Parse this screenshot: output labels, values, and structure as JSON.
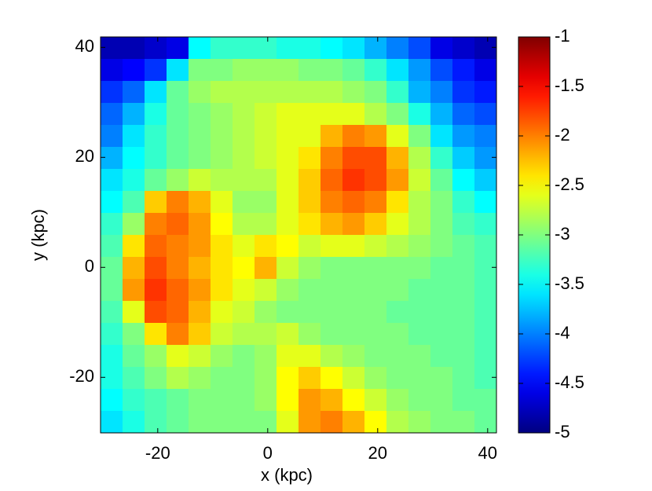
{
  "chart_data": {
    "type": "heatmap",
    "xlabel": "x (kpc)",
    "ylabel": "y (kpc)",
    "colormap": "jet",
    "xlim": [
      -30.4,
      41.6
    ],
    "ylim": [
      -30.1,
      41.9
    ],
    "xticks": [
      -20,
      0,
      20,
      40
    ],
    "yticks": [
      -20,
      0,
      20,
      40
    ],
    "x": [
      -28.4,
      -24.4,
      -20.4,
      -16.4,
      -12.4,
      -8.4,
      -4.4,
      -0.4,
      3.6,
      7.6,
      11.6,
      15.6,
      19.6,
      23.6,
      27.6,
      31.6,
      35.6,
      39.6
    ],
    "y": [
      39.9,
      35.9,
      31.9,
      27.9,
      23.9,
      19.9,
      15.9,
      11.9,
      7.9,
      3.9,
      -0.1,
      -4.1,
      -8.1,
      -12.1,
      -16.1,
      -20.1,
      -24.1,
      -28.1
    ],
    "values": [
      [
        -4.8,
        -4.8,
        -4.7,
        -4.6,
        -3.5,
        -3.3,
        -3.3,
        -3.3,
        -3.4,
        -3.4,
        -3.5,
        -3.6,
        -3.8,
        -4.0,
        -4.2,
        -4.6,
        -4.7,
        -4.8
      ],
      [
        -4.6,
        -4.5,
        -4.3,
        -3.6,
        -3.0,
        -3.0,
        -2.9,
        -2.9,
        -2.9,
        -3.0,
        -3.0,
        -3.1,
        -3.3,
        -3.6,
        -3.9,
        -4.2,
        -4.4,
        -4.6
      ],
      [
        -4.3,
        -4.1,
        -3.6,
        -3.1,
        -2.9,
        -2.8,
        -2.8,
        -2.8,
        -2.8,
        -2.8,
        -2.8,
        -2.9,
        -3.0,
        -3.3,
        -3.8,
        -4.0,
        -4.3,
        -4.4
      ],
      [
        -4.1,
        -3.8,
        -3.4,
        -3.1,
        -3.0,
        -2.9,
        -2.8,
        -2.7,
        -2.6,
        -2.6,
        -2.6,
        -2.6,
        -2.8,
        -3.0,
        -3.4,
        -3.8,
        -4.1,
        -4.2
      ],
      [
        -4.0,
        -3.6,
        -3.3,
        -3.1,
        -3.0,
        -2.9,
        -2.8,
        -2.7,
        -2.6,
        -2.6,
        -2.2,
        -2.0,
        -2.1,
        -2.6,
        -3.0,
        -3.6,
        -3.9,
        -4.0
      ],
      [
        -3.8,
        -3.5,
        -3.3,
        -3.1,
        -3.0,
        -2.9,
        -2.8,
        -2.7,
        -2.6,
        -2.4,
        -2.0,
        -1.8,
        -1.8,
        -2.2,
        -2.8,
        -3.3,
        -3.7,
        -3.9
      ],
      [
        -3.6,
        -3.4,
        -3.1,
        -2.9,
        -2.7,
        -2.8,
        -2.8,
        -2.8,
        -2.6,
        -2.3,
        -1.9,
        -1.7,
        -1.8,
        -2.1,
        -2.7,
        -3.1,
        -3.5,
        -3.7
      ],
      [
        -3.5,
        -3.2,
        -2.3,
        -2.0,
        -2.2,
        -2.6,
        -2.9,
        -2.9,
        -2.6,
        -2.3,
        -2.0,
        -1.9,
        -2.0,
        -2.4,
        -2.8,
        -3.0,
        -3.3,
        -3.5
      ],
      [
        -3.3,
        -2.9,
        -2.0,
        -1.9,
        -2.1,
        -2.5,
        -2.8,
        -2.8,
        -2.6,
        -2.4,
        -2.2,
        -2.1,
        -2.3,
        -2.6,
        -2.8,
        -3.0,
        -3.2,
        -3.3
      ],
      [
        -3.2,
        -2.4,
        -1.9,
        -2.0,
        -2.1,
        -2.4,
        -2.6,
        -2.4,
        -2.5,
        -2.7,
        -2.6,
        -2.6,
        -2.7,
        -2.8,
        -2.9,
        -3.0,
        -3.1,
        -3.2
      ],
      [
        -3.1,
        -2.2,
        -1.8,
        -2.0,
        -2.2,
        -2.4,
        -2.5,
        -2.2,
        -2.7,
        -2.9,
        -3.0,
        -3.0,
        -3.0,
        -3.0,
        -3.0,
        -3.1,
        -3.1,
        -3.2
      ],
      [
        -3.1,
        -2.1,
        -1.7,
        -1.9,
        -2.1,
        -2.4,
        -2.6,
        -2.7,
        -2.9,
        -3.0,
        -3.0,
        -3.0,
        -3.0,
        -3.0,
        -3.1,
        -3.1,
        -3.1,
        -3.2
      ],
      [
        -3.2,
        -2.6,
        -1.8,
        -1.9,
        -2.2,
        -2.6,
        -2.7,
        -2.9,
        -3.0,
        -3.0,
        -3.0,
        -3.0,
        -3.0,
        -3.1,
        -3.1,
        -3.1,
        -3.1,
        -3.2
      ],
      [
        -3.3,
        -3.0,
        -2.4,
        -2.0,
        -2.3,
        -2.7,
        -2.8,
        -2.8,
        -2.7,
        -2.9,
        -3.0,
        -3.0,
        -3.0,
        -3.0,
        -3.1,
        -3.1,
        -3.1,
        -3.2
      ],
      [
        -3.4,
        -3.1,
        -2.9,
        -2.6,
        -2.7,
        -2.9,
        -3.0,
        -2.9,
        -2.6,
        -2.6,
        -2.8,
        -2.9,
        -3.0,
        -3.0,
        -3.0,
        -3.1,
        -3.1,
        -3.2
      ],
      [
        -3.4,
        -3.2,
        -3.0,
        -2.8,
        -2.9,
        -3.0,
        -3.0,
        -2.9,
        -2.5,
        -2.3,
        -2.5,
        -2.7,
        -2.9,
        -3.0,
        -3.0,
        -3.0,
        -3.1,
        -3.2
      ],
      [
        -3.5,
        -3.3,
        -3.2,
        -3.1,
        -3.0,
        -3.0,
        -3.0,
        -2.9,
        -2.5,
        -2.1,
        -2.2,
        -2.5,
        -2.7,
        -2.9,
        -3.0,
        -3.0,
        -3.1,
        -3.1
      ],
      [
        -3.6,
        -3.4,
        -3.2,
        -3.1,
        -3.0,
        -3.0,
        -3.0,
        -3.0,
        -2.6,
        -2.1,
        -2.0,
        -2.2,
        -2.5,
        -2.8,
        -2.9,
        -3.0,
        -3.0,
        -3.1
      ]
    ],
    "colorbar": {
      "clim": [
        -5,
        -1
      ],
      "ticks": [
        -1,
        -1.5,
        -2,
        -2.5,
        -3,
        -3.5,
        -4,
        -4.5,
        -5
      ]
    }
  }
}
